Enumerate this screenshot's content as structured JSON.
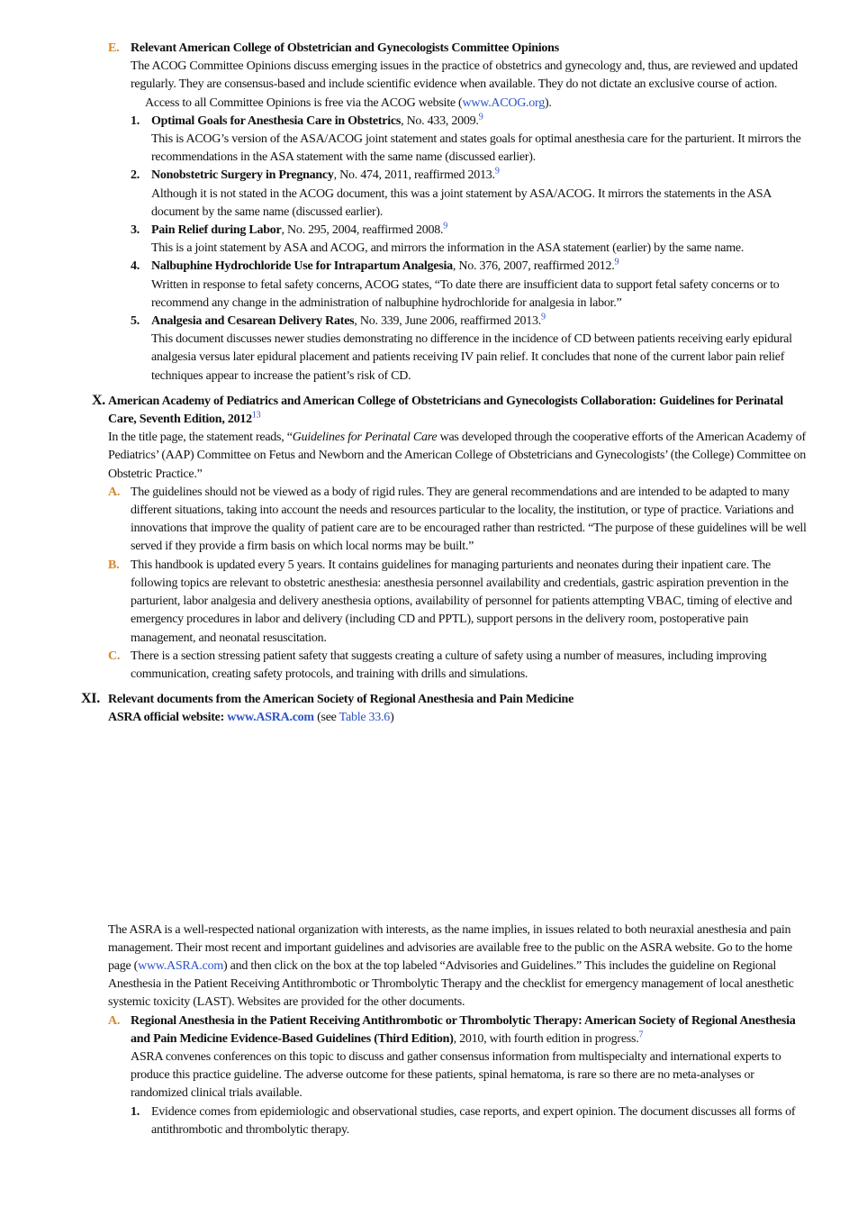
{
  "e": {
    "marker": "E.",
    "title": "Relevant American College of Obstetrician and Gynecologists Committee Opinions",
    "text": "The ACOG Committee Opinions discuss emerging issues in the practice of obstetrics and gynecology and, thus, are reviewed and updated regularly. They are consensus-based and include scientific evidence when available. They do not dictate an exclusive course of action.",
    "access": "Access to all Committee Opinions is free via the ACOG website (",
    "access_link": "www.ACOG.org",
    "access_end": ").",
    "items": [
      {
        "num": "1.",
        "title": "Optimal Goals for Anesthesia Care in Obstetrics",
        "rest": ", No. 433, 2009.",
        "ref": "9",
        "text": "This is ACOG’s version of the ASA/ACOG joint statement and states goals for optimal anesthesia care for the parturient. It mirrors the recommendations in the ASA statement with the same name (discussed earlier)."
      },
      {
        "num": "2.",
        "title": "Nonobstetric Surgery in Pregnancy",
        "rest": ", No. 474, 2011, reaffirmed 2013.",
        "ref": "9",
        "text": "Although it is not stated in the ACOG document, this was a joint statement by ASA/ACOG. It mirrors the statements in the ASA document by the same name (discussed earlier)."
      },
      {
        "num": "3.",
        "title": "Pain Relief during Labor",
        "rest": ", No. 295, 2004, reaffirmed 2008.",
        "ref": "9",
        "text": "This is a joint statement by ASA and ACOG, and mirrors the information in the ASA statement (earlier) by the same name."
      },
      {
        "num": "4.",
        "title": "Nalbuphine Hydrochloride Use for Intrapartum Analgesia",
        "rest": ", No. 376, 2007, reaffirmed 2012.",
        "ref": "9",
        "text": "Written in response to fetal safety concerns, ACOG states, “To date there are insufficient data to support fetal safety concerns or to recommend any change in the administration of nalbuphine hydrochloride for analgesia in labor.”"
      },
      {
        "num": "5.",
        "title": "Analgesia and Cesarean Delivery Rates",
        "rest": ", No. 339, June 2006, reaffirmed 2013.",
        "ref": "9",
        "text": "This document discusses newer studies demonstrating no difference in the incidence of CD between patients receiving early epidural analgesia versus later epidural placement and patients receiving IV pain relief. It concludes that none of the current labor pain relief techniques appear to increase the patient’s risk of CD."
      }
    ]
  },
  "x": {
    "marker": "X.",
    "title": "American Academy of Pediatrics and American College of Obstetricians and Gynecologists Collaboration: Guidelines for Perinatal Care, Seventh Edition, 2012",
    "ref": "13",
    "text_start": "In the title page, the statement reads, “",
    "text_italic": "Guidelines for Perinatal Care",
    "text_end": " was developed through the cooperative efforts of the American Academy of Pediatrics’ (AAP) Committee on Fetus and Newborn and the American College of Obstetricians and Gynecologists’ (the College) Committee on Obstetric Practice.”",
    "items": [
      {
        "marker": "A.",
        "text": "The guidelines should not be viewed as a body of rigid rules. They are general recommendations and are intended to be adapted to many different situations, taking into account the needs and resources particular to the locality, the institution, or type of practice. Variations and innovations that improve the quality of patient care are to be encouraged rather than restricted. “The purpose of these guidelines will be well served if they provide a firm basis on which local norms may be built.”"
      },
      {
        "marker": "B.",
        "text": "This handbook is updated every 5 years. It contains guidelines for managing parturients and neonates during their inpatient care. The following topics are relevant to obstetric anesthesia: anesthesia personnel availability and credentials, gastric aspiration prevention in the parturient, labor analgesia and delivery anesthesia options, availability of personnel for patients attempting VBAC, timing of elective and emergency procedures in labor and delivery (including CD and PPTL), support persons in the delivery room, postoperative pain management, and neonatal resuscitation."
      },
      {
        "marker": "C.",
        "text": "There is a section stressing patient safety that suggests creating a culture of safety using a number of measures, including improving communication, creating safety protocols, and training with drills and simulations."
      }
    ]
  },
  "xi": {
    "marker": "XI.",
    "title": "Relevant documents from the American Society of Regional Anesthesia and Pain Medicine",
    "site_label": "ASRA official website: ",
    "site_link": "www.ASRA.com",
    "see": " (see ",
    "table_link": "Table 33.6",
    "see_end": ")",
    "para_start": "The ASRA is a well-respected national organization with interests, as the name implies, in issues related to both neuraxial anesthesia and pain management. Their most recent and important guidelines and advisories are available free to the public on the ASRA website. Go to the home page (",
    "para_link": "www.ASRA.com",
    "para_end": ") and then click on the box at the top labeled “Advisories and Guidelines.” This includes the guideline on Regional Anesthesia in the Patient Receiving Antithrombotic or Thrombolytic Therapy and the checklist for emergency management of local anesthetic systemic toxicity (LAST). Websites are provided for the other documents.",
    "a": {
      "marker": "A.",
      "title": "Regional Anesthesia in the Patient Receiving Antithrombotic or Thrombolytic Therapy: American Society of Regional Anesthesia and Pain Medicine Evidence-Based Guidelines (Third Edition)",
      "rest": ", 2010, with fourth edition in progress.",
      "ref": "7",
      "text": "ASRA convenes conferences on this topic to discuss and gather consensus information from multispecialty and international experts to produce this practice guideline. The adverse outcome for these patients, spinal hematoma, is rare so there are no meta-analyses or randomized clinical trials available.",
      "items": [
        {
          "num": "1.",
          "text": "Evidence comes from epidemiologic and observational studies, case reports, and expert opinion. The document discusses all forms of antithrombotic and thrombolytic therapy."
        }
      ]
    }
  }
}
